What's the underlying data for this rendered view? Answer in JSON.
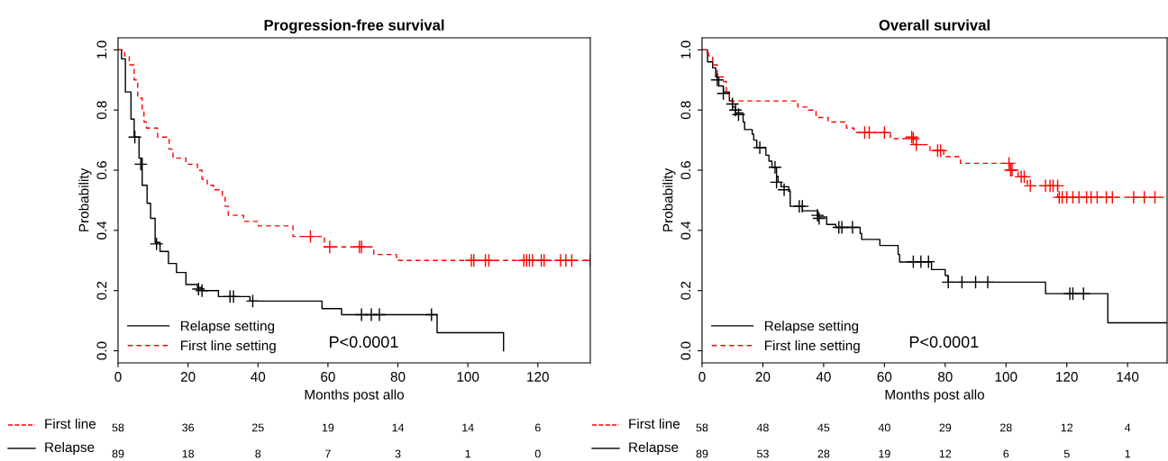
{
  "chart_data": [
    {
      "type": "step",
      "title": "Progression-free survival",
      "xlabel": "Months post allo",
      "ylabel": "Probability",
      "xlim": [
        0,
        135
      ],
      "xticks": [
        0,
        20,
        40,
        60,
        80,
        100,
        120
      ],
      "ylim": [
        -0.04,
        1.04
      ],
      "yticks": [
        {
          "value": 0,
          "label": "0.0"
        },
        {
          "value": 0.2,
          "label": "0.2"
        },
        {
          "value": 0.4,
          "label": "0.4"
        },
        {
          "value": 0.6,
          "label": "0.6"
        },
        {
          "value": 0.8,
          "label": "0.8"
        },
        {
          "value": 1,
          "label": "1.0"
        }
      ],
      "grid": false,
      "legend": "bottom left",
      "series": [
        {
          "name": "Relapse setting",
          "color": "#000000",
          "line_style": "solid",
          "x": [
            0,
            1,
            2.1,
            3.7,
            4.6,
            6,
            6.9,
            8.3,
            9.3,
            10.6,
            12,
            14.4,
            16.7,
            19.4,
            22.7,
            24,
            28.7,
            37.7,
            58.3,
            63.9,
            91.2,
            110.2,
            110.2
          ],
          "values": [
            1,
            0.97,
            0.86,
            0.77,
            0.71,
            0.64,
            0.55,
            0.49,
            0.44,
            0.36,
            0.33,
            0.29,
            0.26,
            0.22,
            0.21,
            0.2,
            0.18,
            0.165,
            0.14,
            0.12,
            0.06,
            0.06,
            0
          ]
        },
        {
          "name": "First line setting",
          "color": "#ff0000",
          "line_style": "dashed",
          "x": [
            0,
            0.9,
            1.9,
            3.2,
            4.6,
            5.6,
            6.9,
            7.4,
            8.1,
            11.3,
            14.6,
            15.7,
            19.4,
            22.7,
            24,
            25.5,
            27.3,
            29.8,
            30.6,
            31.5,
            35.9,
            40.1,
            50,
            59,
            73.1,
            79.6,
            135
          ],
          "values": [
            1,
            1,
            0.98,
            0.95,
            0.9,
            0.84,
            0.8,
            0.76,
            0.74,
            0.71,
            0.67,
            0.64,
            0.62,
            0.6,
            0.57,
            0.55,
            0.535,
            0.51,
            0.48,
            0.45,
            0.43,
            0.415,
            0.38,
            0.345,
            0.32,
            0.3,
            0.3
          ]
        },
        {
          "type": "scatter",
          "marker": "cross",
          "color": "#000000",
          "x": [
            4.8,
            6.5,
            11,
            23,
            24,
            32,
            33,
            38.5,
            69.6,
            72.4,
            74.7,
            89.6
          ],
          "values": [
            0.71,
            0.62,
            0.355,
            0.205,
            0.2,
            0.18,
            0.18,
            0.165,
            0.12,
            0.12,
            0.12,
            0.12
          ]
        },
        {
          "type": "scatter",
          "marker": "cross",
          "color": "#ff0000",
          "x": [
            55,
            60.5,
            69,
            69.6,
            101,
            101.7,
            105,
            106,
            116,
            116.8,
            117.6,
            118.5,
            121,
            121.8,
            126.5,
            128,
            129.7,
            135
          ],
          "values": [
            0.38,
            0.345,
            0.345,
            0.345,
            0.3,
            0.3,
            0.3,
            0.3,
            0.3,
            0.3,
            0.3,
            0.3,
            0.3,
            0.3,
            0.3,
            0.3,
            0.3,
            0.3
          ]
        }
      ],
      "annotations": [
        "P<0.0001",
        "First line",
        "58",
        "36",
        "25",
        "19",
        "14",
        "14",
        "6",
        "Relapse",
        "89",
        "18",
        "8",
        "7",
        "3",
        "1",
        "0"
      ]
    },
    {
      "type": "step",
      "title": "Overall survival",
      "xlabel": "Months post allo",
      "ylabel": "Probability",
      "xlim": [
        0,
        153
      ],
      "xticks": [
        0,
        20,
        40,
        60,
        80,
        100,
        120,
        140
      ],
      "ylim": [
        -0.04,
        1.04
      ],
      "yticks": [
        {
          "value": 0,
          "label": "0.0"
        },
        {
          "value": 0.2,
          "label": "0.2"
        },
        {
          "value": 0.4,
          "label": "0.4"
        },
        {
          "value": 0.6,
          "label": "0.6"
        },
        {
          "value": 0.8,
          "label": "0.8"
        },
        {
          "value": 1,
          "label": "1.0"
        }
      ],
      "grid": false,
      "legend": "bottom left",
      "series": [
        {
          "name": "Relapse setting",
          "color": "#000000",
          "line_style": "solid",
          "x": [
            0,
            1.8,
            3.5,
            4.5,
            5.5,
            7,
            9,
            10,
            11,
            13.5,
            14,
            16.5,
            17,
            18,
            21,
            22,
            23,
            24.5,
            25,
            26,
            28.5,
            29,
            33,
            38,
            41,
            44,
            52,
            52.5,
            58.5,
            64.5,
            65,
            75.5,
            80,
            81,
            113,
            133.5,
            153
          ],
          "values": [
            1,
            0.96,
            0.94,
            0.91,
            0.88,
            0.86,
            0.83,
            0.81,
            0.79,
            0.76,
            0.735,
            0.72,
            0.7,
            0.675,
            0.65,
            0.63,
            0.61,
            0.58,
            0.56,
            0.545,
            0.53,
            0.48,
            0.465,
            0.445,
            0.42,
            0.41,
            0.39,
            0.37,
            0.35,
            0.32,
            0.295,
            0.27,
            0.25,
            0.228,
            0.19,
            0.093,
            0.093
          ]
        },
        {
          "name": "First line setting",
          "color": "#ff0000",
          "line_style": "dashed",
          "x": [
            0,
            2.1,
            3.5,
            5,
            7,
            8,
            9,
            31.5,
            35,
            37.5,
            41.5,
            47.5,
            50,
            62,
            70,
            75,
            79.5,
            85,
            101.5,
            104,
            107,
            117,
            153
          ],
          "values": [
            1,
            0.98,
            0.95,
            0.91,
            0.895,
            0.86,
            0.83,
            0.81,
            0.8,
            0.775,
            0.76,
            0.74,
            0.725,
            0.705,
            0.685,
            0.665,
            0.645,
            0.623,
            0.6,
            0.578,
            0.548,
            0.51,
            0.51
          ]
        },
        {
          "type": "scatter",
          "marker": "cross",
          "color": "#000000",
          "x": [
            5,
            7,
            10,
            11,
            12,
            19,
            24,
            24.5,
            27,
            32,
            33,
            38,
            38.5,
            45,
            46,
            49.5,
            69.5,
            72,
            74.5,
            81,
            85.5,
            90,
            94,
            121,
            122,
            125.5
          ],
          "values": [
            0.9,
            0.855,
            0.82,
            0.8,
            0.785,
            0.675,
            0.61,
            0.56,
            0.535,
            0.48,
            0.48,
            0.45,
            0.44,
            0.41,
            0.41,
            0.41,
            0.296,
            0.296,
            0.296,
            0.228,
            0.228,
            0.228,
            0.228,
            0.19,
            0.19,
            0.19
          ]
        },
        {
          "type": "scatter",
          "marker": "cross",
          "color": "#ff0000",
          "x": [
            53.5,
            55,
            60,
            69,
            69.5,
            70.5,
            77.5,
            78.5,
            101,
            101.5,
            102,
            105,
            106,
            108,
            113,
            114.5,
            115.5,
            117,
            117.5,
            118.5,
            120,
            122,
            124,
            126.5,
            128,
            130,
            133,
            135,
            142,
            145.5,
            149
          ],
          "values": [
            0.725,
            0.725,
            0.725,
            0.71,
            0.705,
            0.685,
            0.665,
            0.665,
            0.623,
            0.6,
            0.6,
            0.578,
            0.578,
            0.548,
            0.548,
            0.548,
            0.548,
            0.548,
            0.51,
            0.51,
            0.51,
            0.51,
            0.51,
            0.51,
            0.51,
            0.51,
            0.51,
            0.51,
            0.51,
            0.51,
            0.51
          ]
        }
      ],
      "annotations": [
        "P<0.0001",
        "First line",
        "58",
        "48",
        "45",
        "40",
        "29",
        "28",
        "12",
        "4",
        "Relapse",
        "89",
        "53",
        "28",
        "19",
        "12",
        "6",
        "5",
        "1"
      ]
    }
  ]
}
